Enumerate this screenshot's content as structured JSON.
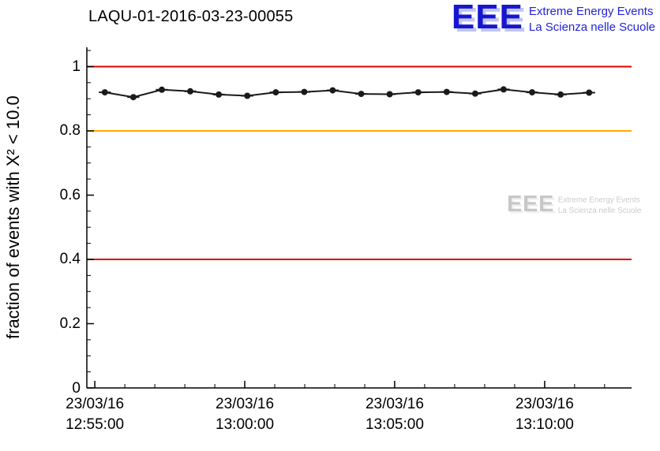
{
  "header": {
    "title": "LAQU-01-2016-03-23-00055"
  },
  "logo": {
    "acronym": "EEE",
    "line1": "Extreme Energy Events",
    "line2": "La Scienza nelle Scuole",
    "color": "#1616cf"
  },
  "watermark": {
    "acronym": "EEE",
    "line1": "Extreme Energy Events",
    "line2": "La Scienza nelle Scuole"
  },
  "chart_data": {
    "type": "line",
    "title": "LAQU-01-2016-03-23-00055",
    "xlabel": "",
    "ylabel": "fraction of events with X² < 10.0",
    "ylim": [
      0,
      1.06
    ],
    "yticks": [
      0,
      0.2,
      0.4,
      0.6,
      0.8,
      1
    ],
    "ytick_labels": [
      "0",
      "0.2",
      "0.4",
      "0.6",
      "0.8",
      "1"
    ],
    "y_minor_step": 0.05,
    "xlim_seconds": [
      -16,
      1074
    ],
    "x_minor_step_seconds": 60,
    "x_major_ticks": [
      {
        "t": 0,
        "date": "23/03/16",
        "time": "12:55:00"
      },
      {
        "t": 300,
        "date": "23/03/16",
        "time": "13:00:00"
      },
      {
        "t": 600,
        "date": "23/03/16",
        "time": "13:05:00"
      },
      {
        "t": 900,
        "date": "23/03/16",
        "time": "13:10:00"
      }
    ],
    "grid": false,
    "legend": "none",
    "reference_lines": [
      {
        "y": 1.0,
        "color": "#e00000"
      },
      {
        "y": 0.8,
        "color": "#ffaa00"
      },
      {
        "y": 0.4,
        "color": "#e00000"
      }
    ],
    "series": [
      {
        "name": "fraction of events with chi2 < 10.0",
        "color": "#1a1a1a",
        "marker": "circle",
        "x_seconds": [
          20,
          77,
          134,
          191,
          248,
          305,
          362,
          419,
          476,
          533,
          590,
          647,
          704,
          761,
          818,
          875,
          932,
          989
        ],
        "values": [
          0.92,
          0.905,
          0.928,
          0.923,
          0.913,
          0.909,
          0.92,
          0.921,
          0.926,
          0.915,
          0.914,
          0.92,
          0.921,
          0.916,
          0.929,
          0.92,
          0.913,
          0.919
        ],
        "x_err_seconds": 12,
        "y_err": 0.004
      }
    ]
  }
}
